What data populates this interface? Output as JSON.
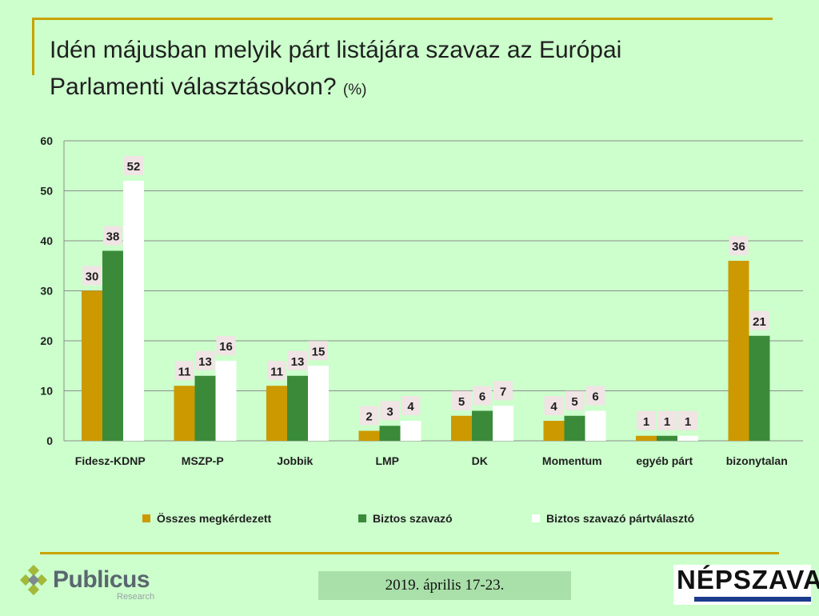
{
  "title": {
    "line1": "Idén májusban melyik párt listájára szavaz az Európai",
    "line2": "Parlamenti választásokon?",
    "unit": "(%)"
  },
  "colors": {
    "background": "#ccffcc",
    "accent_rule": "#c9a200",
    "series1": "#cc9900",
    "series2": "#3a8a3a",
    "series3": "#ffffff",
    "label_bg": "#f0e4e4",
    "grid": "#8c8c8c"
  },
  "chart_data": {
    "type": "bar",
    "title": "Idén májusban melyik párt listájára szavaz az Európai Parlamenti választásokon? (%)",
    "xlabel": "",
    "ylabel": "",
    "ylim": [
      0,
      60
    ],
    "yticks": [
      0,
      10,
      20,
      30,
      40,
      50,
      60
    ],
    "grid": true,
    "legend_position": "bottom",
    "categories": [
      "Fidesz-KDNP",
      "MSZP-P",
      "Jobbik",
      "LMP",
      "DK",
      "Momentum",
      "egyéb párt",
      "bizonytalan"
    ],
    "series": [
      {
        "name": "Összes megkérdezett",
        "color": "#cc9900",
        "values": [
          30,
          11,
          11,
          2,
          5,
          4,
          1,
          36
        ]
      },
      {
        "name": "Biztos szavazó",
        "color": "#3a8a3a",
        "values": [
          38,
          13,
          13,
          3,
          6,
          5,
          1,
          21
        ]
      },
      {
        "name": "Biztos szavazó pártválasztó",
        "color": "#ffffff",
        "values": [
          52,
          16,
          15,
          4,
          7,
          6,
          1,
          null
        ]
      }
    ]
  },
  "footer": {
    "date": "2019. április 17-23.",
    "left_logo": {
      "name": "Publicus",
      "sub": "Research"
    },
    "right_logo": {
      "name": "NÉPSZAVA"
    }
  }
}
